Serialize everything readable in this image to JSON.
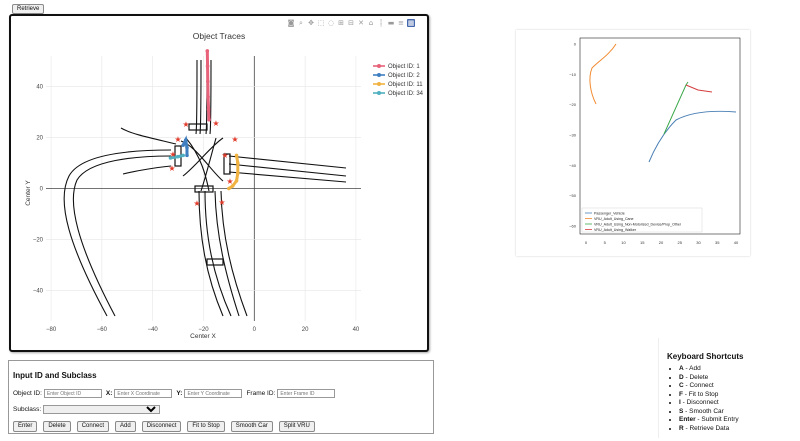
{
  "top": {
    "retrieve_label": "Retrieve"
  },
  "toolbar": {
    "icons": [
      "camera-icon",
      "zoom-icon",
      "pan-icon",
      "box-select-icon",
      "lasso-icon",
      "zoom-in-icon",
      "zoom-out-icon",
      "autoscale-icon",
      "reset-axes-icon",
      "spike-lines-icon",
      "hover-closest-icon",
      "hover-compare-icon",
      "plotly-logo-icon"
    ]
  },
  "main_chart": {
    "title": "Object Traces",
    "xlabel": "Center X",
    "ylabel": "Center Y",
    "xticks": [
      "−80",
      "−60",
      "−40",
      "−20",
      "0",
      "20",
      "40"
    ],
    "yticks": [
      "40",
      "20",
      "0",
      "−20",
      "−40"
    ],
    "legend": [
      {
        "label": "Object ID: 1",
        "color": "#e8627a"
      },
      {
        "label": "Object ID: 2",
        "color": "#3f7fc0"
      },
      {
        "label": "Object ID: 11",
        "color": "#f0b341"
      },
      {
        "label": "Object ID: 34",
        "color": "#4fb0c0"
      }
    ]
  },
  "chart_data": {
    "type": "scatter",
    "xlabel": "Center X",
    "ylabel": "Center Y",
    "xlim": [
      -82,
      42
    ],
    "ylim": [
      -52,
      52
    ],
    "series": [
      {
        "name": "Object ID: 1",
        "x": [
          -18.5,
          -18.4,
          -18.3,
          -18.2,
          -18.0,
          -17.8
        ],
        "y": [
          54,
          48,
          42,
          36,
          31,
          27
        ]
      },
      {
        "name": "Object ID: 2",
        "x": [
          -28,
          -27,
          -26.5,
          -26.5
        ],
        "y": [
          17,
          19,
          16,
          13
        ]
      },
      {
        "name": "Object ID: 11",
        "x": [
          -7,
          -6.5,
          -6.5,
          -7,
          -8.5,
          -10
        ],
        "y": [
          13,
          10,
          6,
          3,
          1,
          0
        ]
      },
      {
        "name": "Object ID: 34",
        "x": [
          -33,
          -30,
          -28
        ],
        "y": [
          12,
          12.5,
          13
        ]
      }
    ]
  },
  "input_form": {
    "title": "Input ID and Subclass",
    "object_id_label": "Object ID:",
    "object_id_placeholder": "Enter Object ID",
    "x_label": "X:",
    "x_placeholder": "Enter X Coordinate",
    "y_label": "Y:",
    "y_placeholder": "Enter Y Coordinate",
    "frame_label": "Frame ID:",
    "frame_placeholder": "Enter Frame ID",
    "subclass_label": "Subclass:",
    "subclass_value": ""
  },
  "actions": {
    "enter": "Enter",
    "delete": "Delete",
    "connect": "Connect",
    "add": "Add",
    "disconnect": "Disconnect",
    "fit_to_stop": "Fit to Stop",
    "smooth_car": "Smooth Car",
    "split_vru": "Split VRU"
  },
  "shortcuts": {
    "title": "Keyboard Shortcuts",
    "items": [
      {
        "key": "A",
        "desc": " - Add"
      },
      {
        "key": "D",
        "desc": " - Delete"
      },
      {
        "key": "C",
        "desc": " - Connect"
      },
      {
        "key": "F",
        "desc": " - Fit to Stop"
      },
      {
        "key": "I",
        "desc": " - Disconnect"
      },
      {
        "key": "S",
        "desc": " - Smooth Car"
      },
      {
        "key": "Enter",
        "desc": " - Submit Entry"
      },
      {
        "key": "R",
        "desc": " - Retrieve Data"
      }
    ]
  },
  "side_chart": {
    "xticks": [
      "0",
      "5",
      "10",
      "15",
      "20",
      "25",
      "30",
      "35",
      "40"
    ],
    "yticks": [
      "0",
      "−10",
      "−20",
      "−30",
      "−40",
      "−50",
      "−60"
    ],
    "legend": [
      {
        "label": "Passenger_Vehicle",
        "color": "#4a7fb5"
      },
      {
        "label": "VRU_Adult_Using_Cane",
        "color": "#f28a2e"
      },
      {
        "label": "VRU_Adult_Using_Non-Motorized_Device/Prop_Other",
        "color": "#3aa84a"
      },
      {
        "label": "VRU_Adult_Using_Walker",
        "color": "#d43d3d"
      }
    ]
  }
}
